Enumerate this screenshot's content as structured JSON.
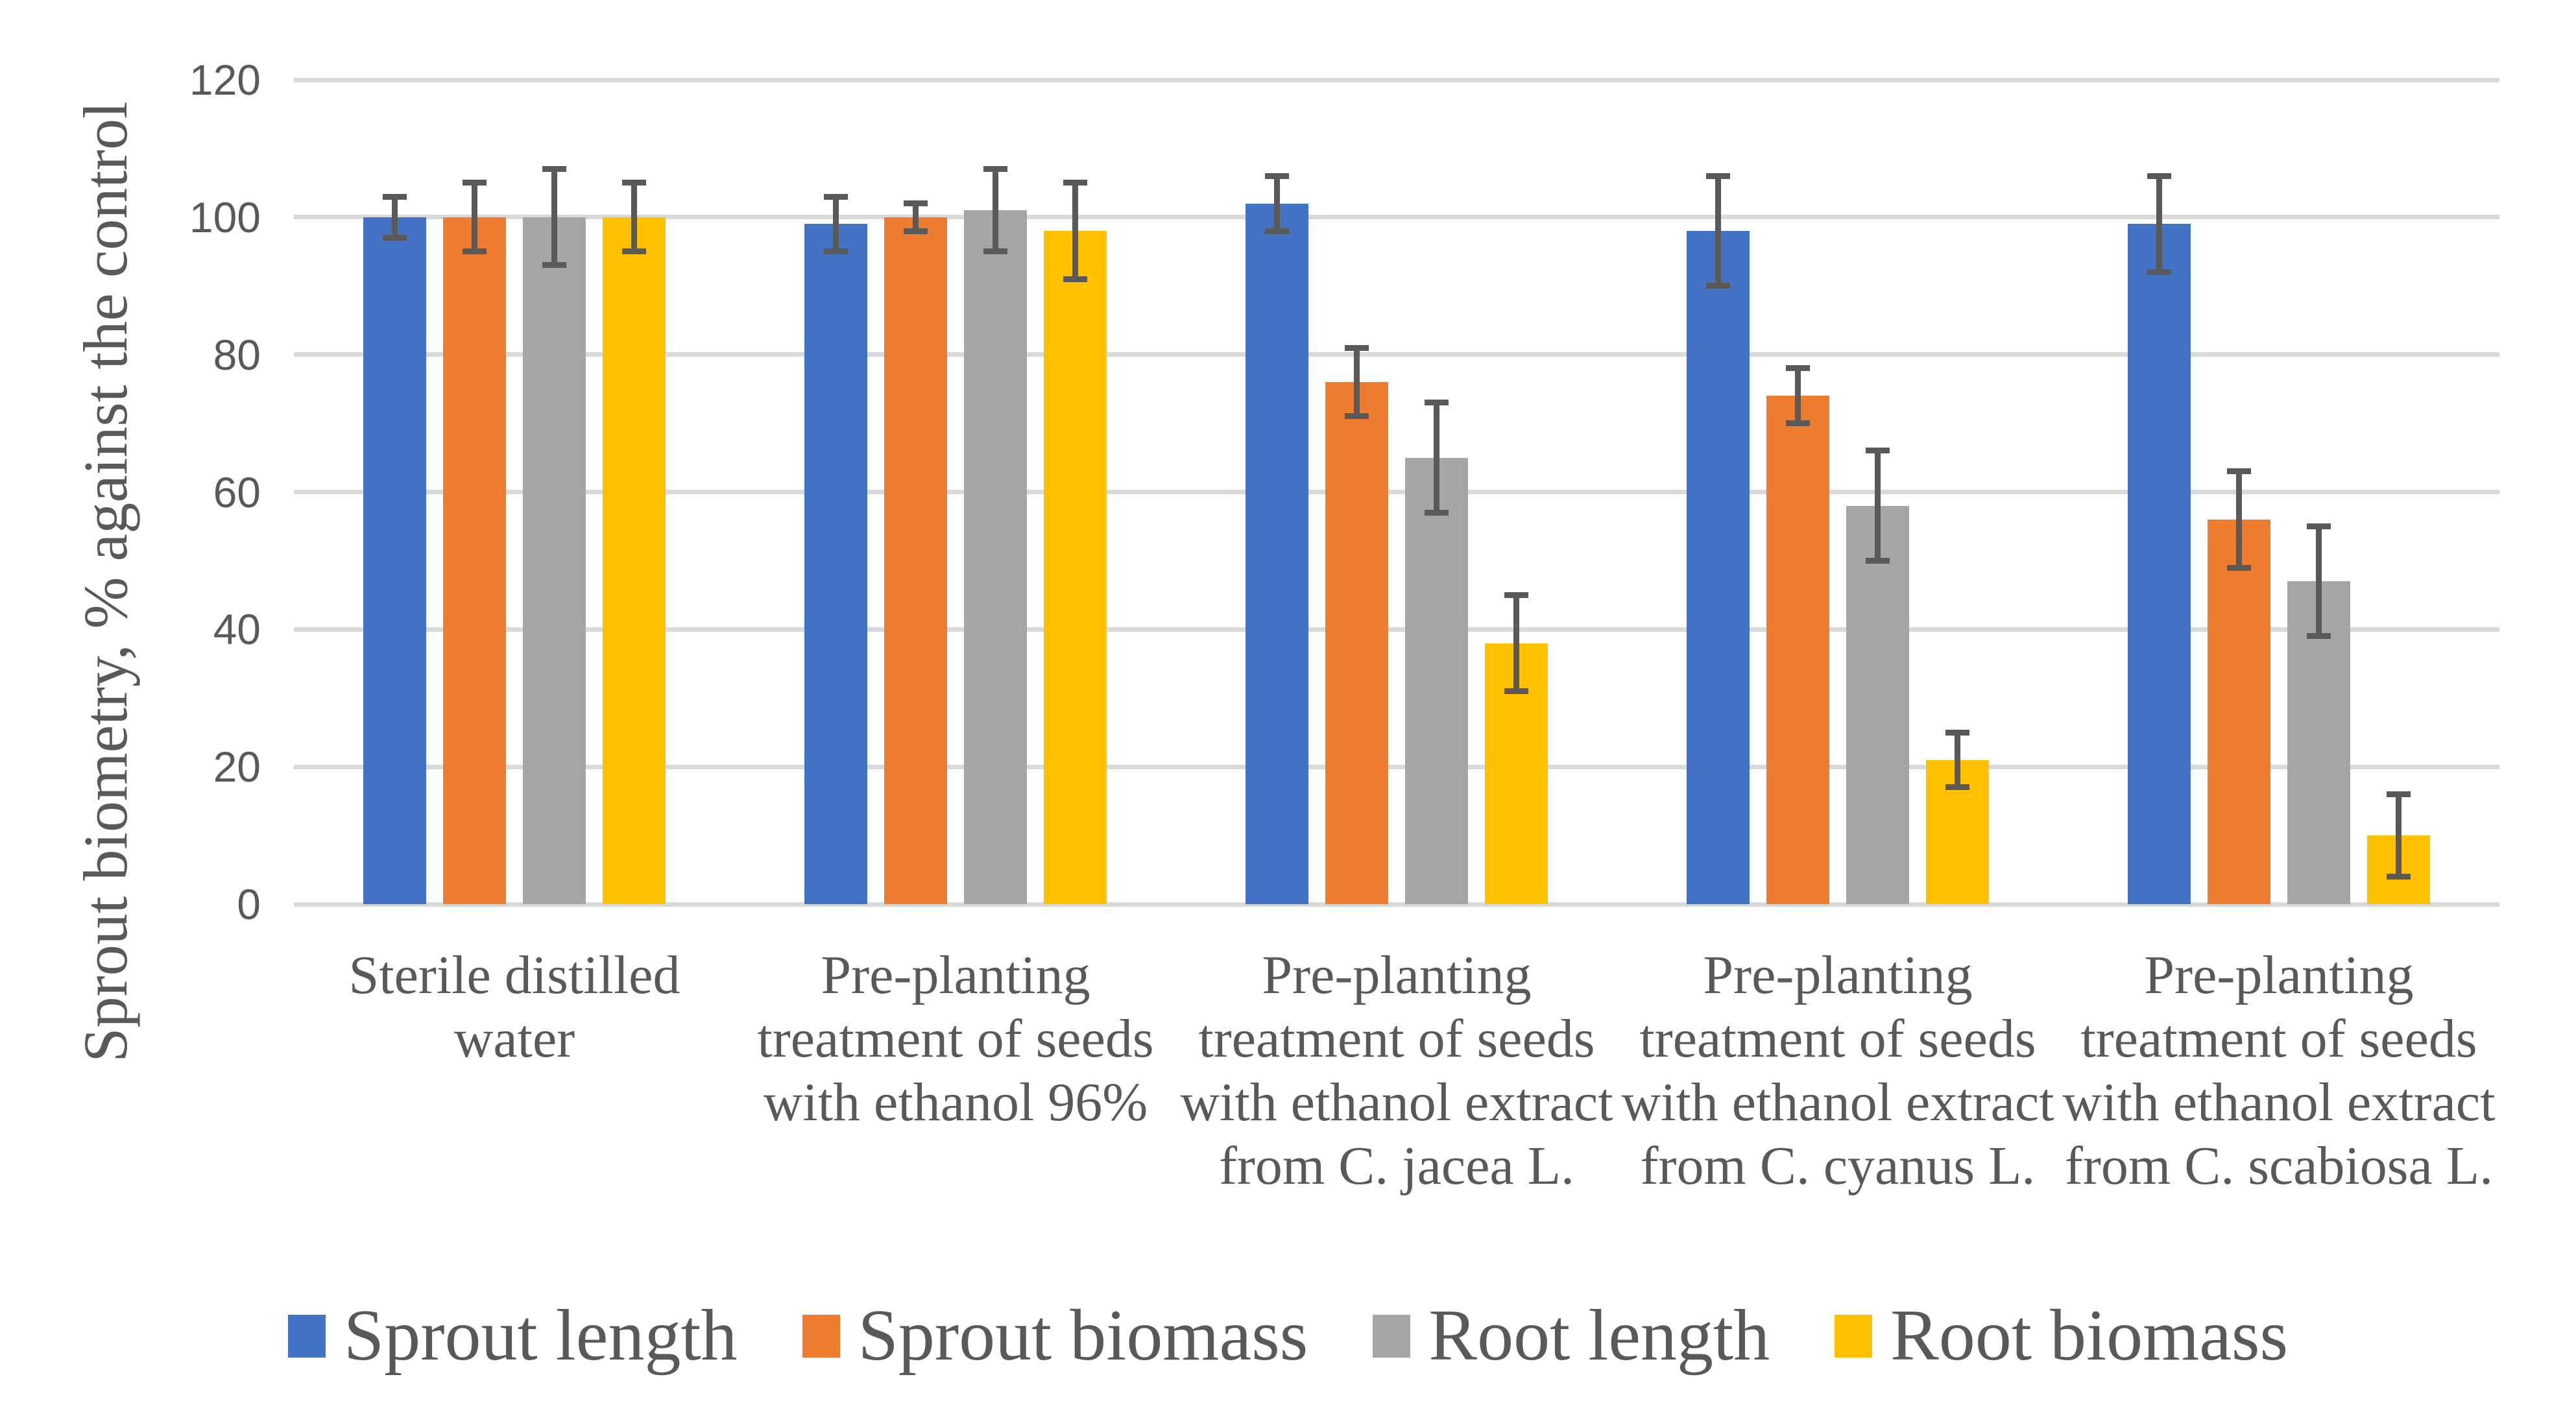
{
  "chart_data": {
    "type": "bar",
    "title": "",
    "ylabel": "Sprout biometry, % against the control",
    "xlabel": "",
    "ylim": [
      0,
      120
    ],
    "yticks": [
      0,
      20,
      40,
      60,
      80,
      100,
      120
    ],
    "grid": "horizontal-only",
    "legend_position": "bottom",
    "error_bars": true,
    "categories": [
      "Sterile distilled water",
      "Pre-planting treatment of seeds with ethanol 96%",
      "Pre-planting treatment of seeds with ethanol extract from C. jacea L.",
      "Pre-planting treatment of seeds with ethanol extract from C. cyanus L.",
      "Pre-planting treatment of seeds with ethanol extract from C. scabiosa L."
    ],
    "category_lines": [
      [
        "Sterile distilled",
        "water"
      ],
      [
        "Pre-planting",
        "treatment of seeds",
        "with ethanol 96%"
      ],
      [
        "Pre-planting",
        "treatment of seeds",
        "with ethanol extract",
        "from C. jacea L."
      ],
      [
        "Pre-planting",
        "treatment of seeds",
        "with ethanol extract",
        "from C. cyanus L."
      ],
      [
        "Pre-planting",
        "treatment of seeds",
        "with ethanol extract",
        "from C. scabiosa L."
      ]
    ],
    "series": [
      {
        "name": "Sprout length",
        "color": "#4472C4",
        "values": [
          100,
          99,
          102,
          98,
          99
        ],
        "errors": [
          3,
          4,
          4,
          8,
          7
        ]
      },
      {
        "name": "Sprout biomass",
        "color": "#ED7D31",
        "values": [
          100,
          100,
          76,
          74,
          56
        ],
        "errors": [
          5,
          2,
          5,
          4,
          7
        ]
      },
      {
        "name": "Root length",
        "color": "#A5A5A5",
        "values": [
          100,
          101,
          65,
          58,
          47
        ],
        "errors": [
          7,
          6,
          8,
          8,
          8
        ]
      },
      {
        "name": "Root biomass",
        "color": "#FFC000",
        "values": [
          100,
          98,
          38,
          21,
          10
        ],
        "errors": [
          5,
          7,
          7,
          4,
          6
        ]
      }
    ]
  },
  "styles": {
    "text_color": "#595959",
    "gridline_color": "#D9D9D9",
    "error_bar_color": "#595959",
    "background": "#FFFFFF"
  }
}
